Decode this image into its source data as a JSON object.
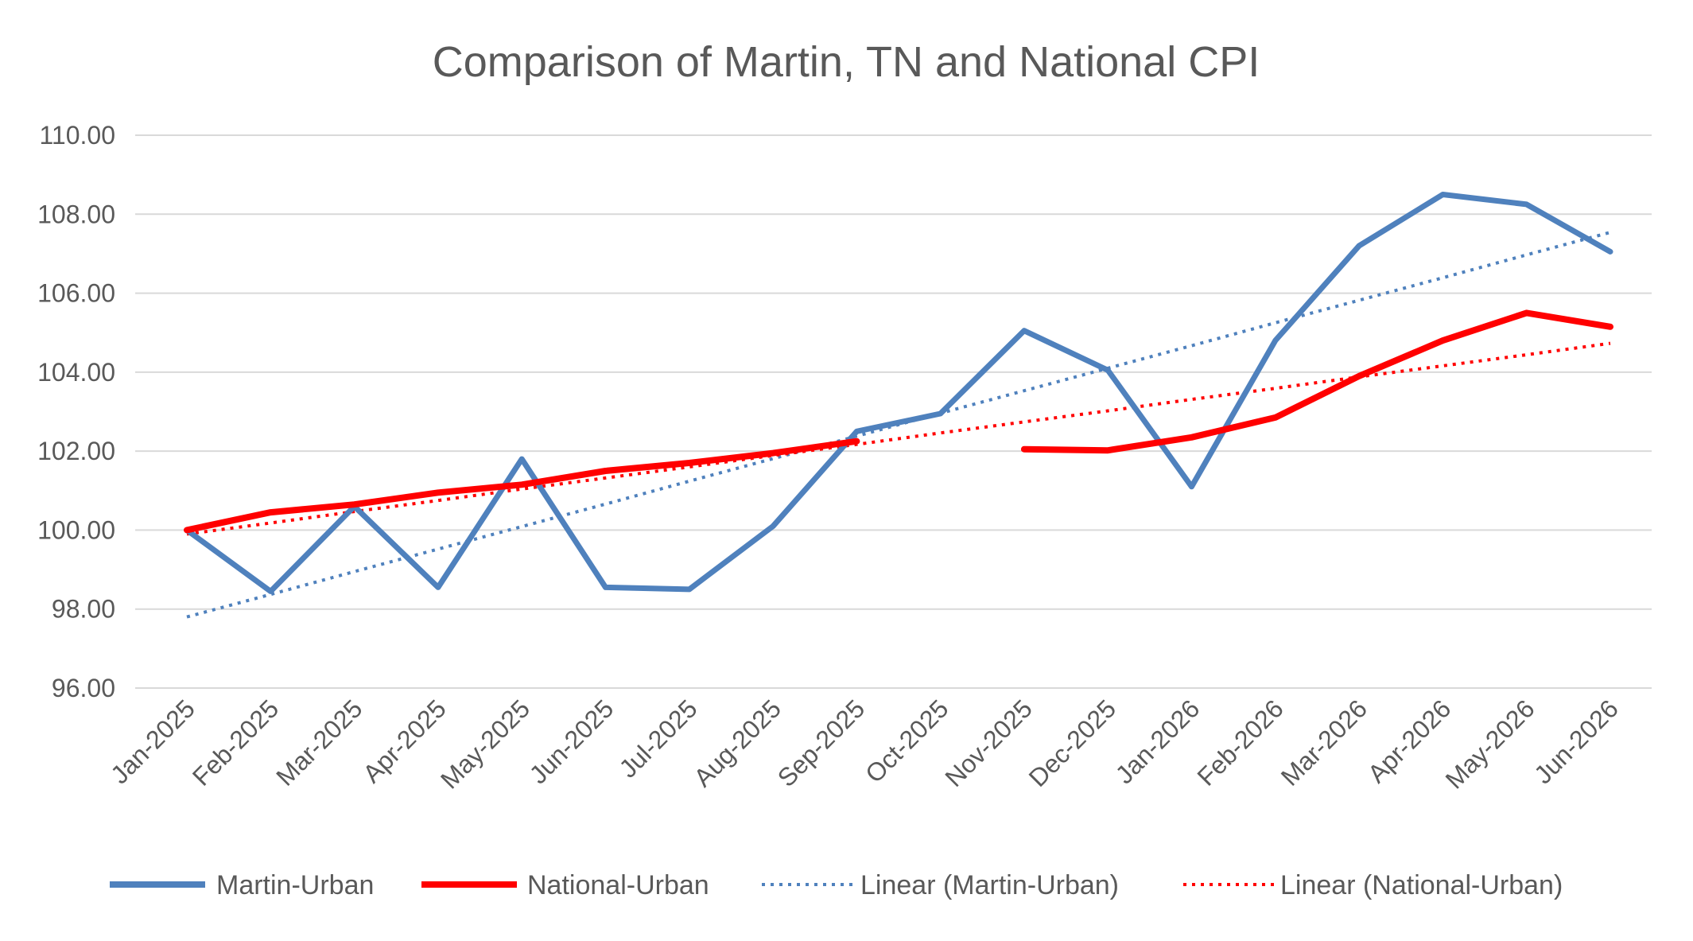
{
  "chart_data": {
    "type": "line",
    "title": "Comparison of Martin, TN and National CPI",
    "categories": [
      "Jan-2025",
      "Feb-2025",
      "Mar-2025",
      "Apr-2025",
      "May-2025",
      "Jun-2025",
      "Jul-2025",
      "Aug-2025",
      "Sep-2025",
      "Oct-2025",
      "Nov-2025",
      "Dec-2025",
      "Jan-2026",
      "Feb-2026",
      "Mar-2026",
      "Apr-2026",
      "May-2026",
      "Jun-2026"
    ],
    "yticks": [
      "96.00",
      "98.00",
      "100.00",
      "102.00",
      "104.00",
      "106.00",
      "108.00",
      "110.00"
    ],
    "ylim": [
      96,
      110
    ],
    "grid": true,
    "legend_position": "bottom",
    "series": [
      {
        "name": "Martin-Urban",
        "color": "#4f81bd",
        "style": "solid",
        "values": [
          100.0,
          98.45,
          100.6,
          98.55,
          101.8,
          98.55,
          98.5,
          100.1,
          102.5,
          102.95,
          105.05,
          104.05,
          101.1,
          104.8,
          107.2,
          108.5,
          108.25,
          107.05
        ]
      },
      {
        "name": "National-Urban",
        "color": "#ff0000",
        "style": "solid",
        "values": [
          100.0,
          100.45,
          100.65,
          100.95,
          101.15,
          101.5,
          101.7,
          101.95,
          102.25,
          null,
          102.05,
          102.02,
          102.35,
          102.85,
          103.9,
          104.8,
          105.5,
          105.15
        ]
      },
      {
        "name": "Linear (Martin-Urban)",
        "color": "#4f81bd",
        "style": "dotted",
        "values": [
          97.8,
          98.37,
          98.95,
          99.52,
          100.09,
          100.66,
          101.24,
          101.81,
          102.38,
          102.96,
          103.53,
          104.1,
          104.67,
          105.25,
          105.82,
          106.39,
          106.97,
          107.54
        ]
      },
      {
        "name": "Linear (National-Urban)",
        "color": "#ff0000",
        "style": "dotted",
        "values": [
          99.9,
          100.18,
          100.47,
          100.75,
          101.04,
          101.32,
          101.6,
          101.89,
          102.17,
          102.46,
          102.74,
          103.02,
          103.31,
          103.59,
          103.88,
          104.16,
          104.44,
          104.73
        ]
      }
    ]
  }
}
